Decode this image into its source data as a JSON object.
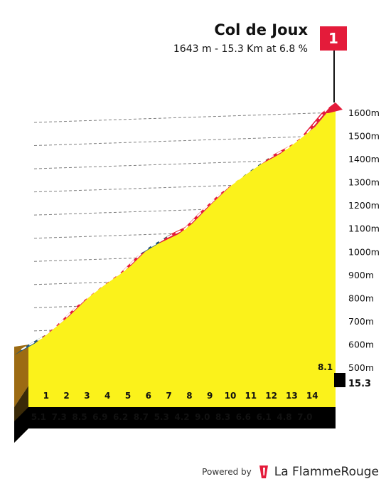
{
  "header": {
    "title": "Col de Joux",
    "subtitle": "1643 m - 15.3 Km at 6.8 %"
  },
  "flag": {
    "label": "1",
    "color": "#e41b3a"
  },
  "footer": {
    "powered_by": "Powered by",
    "brand": "La FlammeRouge",
    "brand_icon": "flame-rouge-logo-icon"
  },
  "colors": {
    "fill": "#fbf21b",
    "road_red": "#e41b3a",
    "road_blue": "#1f567d",
    "base_black": "#000000",
    "start_block": "#9c6b13",
    "dash": "#ffffff"
  },
  "chart_data": {
    "type": "area",
    "title": "Col de Joux",
    "total_km": "15.3",
    "km_markers": [
      "1",
      "2",
      "3",
      "4",
      "5",
      "6",
      "7",
      "8",
      "9",
      "10",
      "11",
      "12",
      "13",
      "14"
    ],
    "km_gradients": [
      5.1,
      7.3,
      8.5,
      6.9,
      6.2,
      8.7,
      5.3,
      4.2,
      9.0,
      8.3,
      6.6,
      6.1,
      4.8,
      7.0,
      8.1
    ],
    "km_gradient_labels": [
      "5.1",
      "7.3",
      "8.5",
      "6.9",
      "6.2",
      "8.7",
      "5.3",
      "4.2",
      "9.0",
      "8.3",
      "6.6",
      "6.1",
      "4.8",
      "7.0",
      "8.1"
    ],
    "segment_road_colors": [
      "blue",
      "red",
      "red",
      "red",
      "red",
      "red",
      "blue",
      "red",
      "red",
      "red",
      "red",
      "blue",
      "red",
      "red",
      "red"
    ],
    "y_ticks": [
      "500m",
      "600m",
      "700m",
      "800m",
      "900m",
      "1000m",
      "1100m",
      "1200m",
      "1300m",
      "1400m",
      "1500m",
      "1600m"
    ],
    "y_tick_values": [
      500,
      600,
      700,
      800,
      900,
      1000,
      1100,
      1200,
      1300,
      1400,
      1500,
      1600
    ],
    "ylim": [
      420,
      1643
    ],
    "end_altitude_m": 1643,
    "distance_km": 15.3,
    "avg_gradient_pct": 6.8,
    "grid": true
  }
}
